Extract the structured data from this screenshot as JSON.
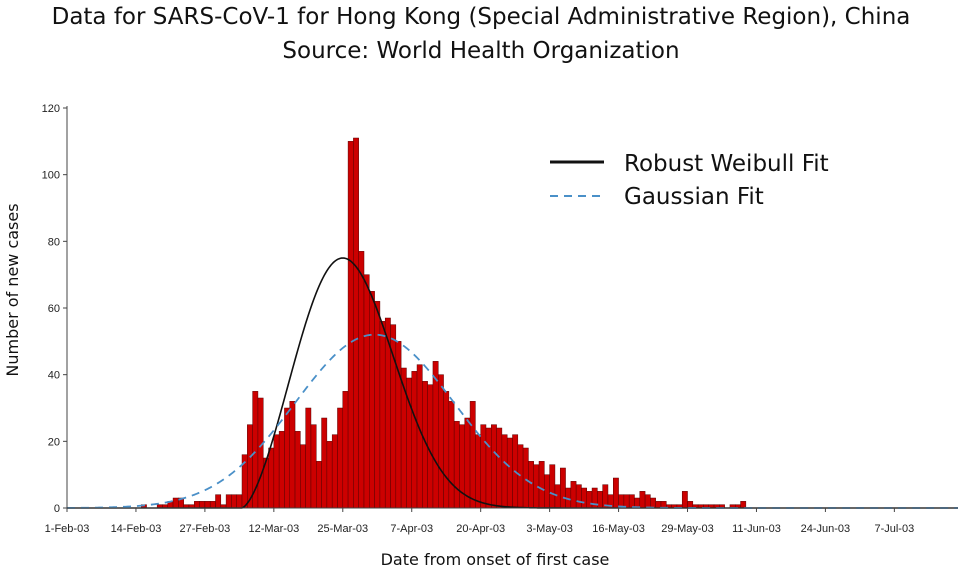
{
  "title_line1": "Data for SARS-CoV-1 for Hong Kong (Special Administrative Region), China",
  "title_line2": "Source: World Health Organization",
  "colors": {
    "bar_fill": "#cc0000",
    "bar_stroke": "#5a0000",
    "weibull": "#111111",
    "gaussian": "#4a90c8"
  },
  "chart_data": {
    "type": "bar",
    "xlabel": "Date from onset of first case",
    "ylabel": "Number of new cases",
    "ylim": [
      0,
      120
    ],
    "yticks": [
      0,
      20,
      40,
      60,
      80,
      100,
      120
    ],
    "x_start": "2003-02-01",
    "x_end": "2003-07-19",
    "xtick_labels": [
      "1-Feb-03",
      "14-Feb-03",
      "27-Feb-03",
      "12-Mar-03",
      "25-Mar-03",
      "7-Apr-03",
      "20-Apr-03",
      "3-May-03",
      "16-May-03",
      "29-May-03",
      "11-Jun-03",
      "24-Jun-03",
      "7-Jul-03"
    ],
    "xtick_dates": [
      "2003-02-01",
      "2003-02-14",
      "2003-02-27",
      "2003-03-12",
      "2003-03-25",
      "2003-04-07",
      "2003-04-20",
      "2003-05-03",
      "2003-05-16",
      "2003-05-29",
      "2003-06-11",
      "2003-06-24",
      "2003-07-07"
    ],
    "bars_first_date": "2003-02-15",
    "daily_new_cases": [
      1,
      0,
      0,
      1,
      1,
      2,
      3,
      3,
      1,
      1,
      2,
      2,
      2,
      2,
      4,
      1,
      4,
      4,
      4,
      16,
      25,
      35,
      33,
      15,
      18,
      22,
      23,
      30,
      32,
      23,
      19,
      30,
      25,
      14,
      27,
      20,
      22,
      30,
      35,
      110,
      111,
      77,
      70,
      65,
      62,
      56,
      57,
      55,
      50,
      42,
      39,
      41,
      43,
      38,
      37,
      44,
      40,
      35,
      32,
      26,
      25,
      27,
      32,
      22,
      25,
      24,
      25,
      24,
      22,
      21,
      22,
      19,
      18,
      14,
      13,
      14,
      10,
      13,
      7,
      12,
      6,
      8,
      7,
      6,
      5,
      6,
      5,
      7,
      4,
      9,
      4,
      4,
      4,
      3,
      5,
      4,
      3,
      2,
      2,
      1,
      1,
      1,
      5,
      2,
      1,
      1,
      1,
      1,
      1,
      1,
      0,
      1,
      1,
      2
    ],
    "series": [
      {
        "name": "Robust Weibull Fit",
        "style": "solid",
        "peak_date": "2003-03-25",
        "peak_value": 75
      },
      {
        "name": "Gaussian Fit",
        "style": "dashed",
        "peak_date": "2003-03-31",
        "peak_value": 52
      }
    ],
    "legend_position": "top-right",
    "grid": false
  }
}
